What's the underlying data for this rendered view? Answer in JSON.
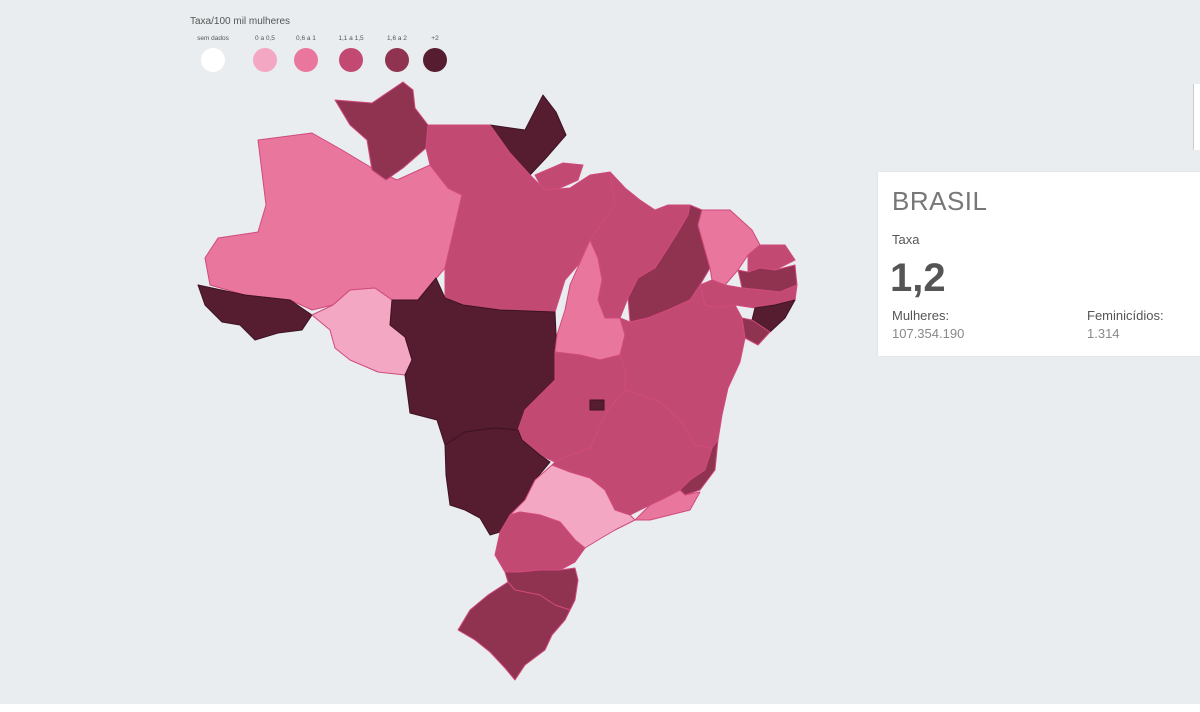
{
  "legend": {
    "title": "Taxa/100 mil mulheres",
    "items": [
      {
        "label": "sem dados",
        "color": "#ffffff"
      },
      {
        "label": "0 a 0,5",
        "color": "#f4a7c2"
      },
      {
        "label": "0,6 a 1",
        "color": "#e9779d"
      },
      {
        "label": "1,1 a 1,5",
        "color": "#c24a72"
      },
      {
        "label": "1,6 a 2",
        "color": "#8f3350"
      },
      {
        "label": "+2",
        "color": "#561d31"
      }
    ]
  },
  "region_colors": {
    "AC": "#561d31",
    "AM": "#e9779d",
    "RR": "#8f3350",
    "AP": "#561d31",
    "PA": "#c24a72",
    "RO": "#f4a7c2",
    "MT": "#561d31",
    "MA": "#c24a72",
    "TO": "#e9779d",
    "PI": "#8f3350",
    "CE": "#e9779d",
    "RN": "#c24a72",
    "PB": "#8f3350",
    "PE": "#c24a72",
    "AL": "#561d31",
    "SE": "#8f3350",
    "BA": "#c24a72",
    "GO": "#c24a72",
    "DF": "#561d31",
    "MS": "#561d31",
    "MG": "#c24a72",
    "ES": "#8f3350",
    "RJ": "#e9779d",
    "SP": "#f4a7c2",
    "PR": "#c24a72",
    "SC": "#8f3350",
    "RS": "#8f3350",
    "MAR": "#c24a72"
  },
  "card": {
    "title": "BRASIL",
    "rate_label": "Taxa",
    "rate_value": "1,2",
    "women_label": "Mulheres:",
    "women_value": "107.354.190",
    "fem_label": "Feminicídios:",
    "fem_value": "1.314"
  }
}
